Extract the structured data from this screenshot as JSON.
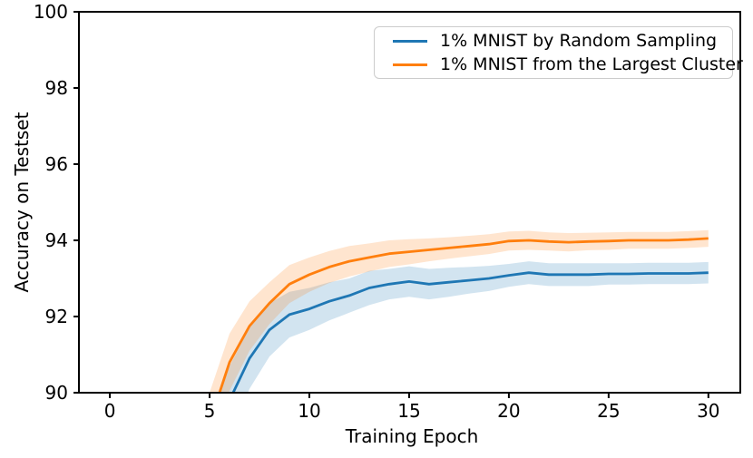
{
  "chart_data": {
    "type": "line",
    "title": "",
    "xlabel": "Training Epoch",
    "ylabel": "Accuracy on Testset",
    "xlim": [
      -1.55,
      31.6
    ],
    "ylim": [
      90,
      100
    ],
    "x_ticks": [
      0,
      5,
      10,
      15,
      20,
      25,
      30
    ],
    "y_ticks": [
      90,
      92,
      94,
      96,
      98,
      100
    ],
    "grid": false,
    "legend_position": "upper right",
    "x": [
      5,
      6,
      7,
      8,
      9,
      10,
      11,
      12,
      13,
      14,
      15,
      16,
      17,
      18,
      19,
      20,
      21,
      22,
      23,
      24,
      25,
      26,
      27,
      28,
      29,
      30
    ],
    "series": [
      {
        "name": "1% MNIST by Random Sampling",
        "slug": "random-sampling",
        "color": "#1f77b4",
        "band_alpha": 0.2,
        "values": [
          88.6,
          89.8,
          90.9,
          91.65,
          92.05,
          92.2,
          92.4,
          92.55,
          92.75,
          92.85,
          92.92,
          92.85,
          92.9,
          92.95,
          93.0,
          93.08,
          93.15,
          93.1,
          93.1,
          93.1,
          93.12,
          93.12,
          93.13,
          93.13,
          93.13,
          93.15
        ],
        "band_halfwidth": [
          0.9,
          0.9,
          0.8,
          0.7,
          0.6,
          0.55,
          0.5,
          0.45,
          0.45,
          0.4,
          0.4,
          0.4,
          0.38,
          0.35,
          0.33,
          0.3,
          0.3,
          0.3,
          0.3,
          0.3,
          0.28,
          0.28,
          0.28,
          0.28,
          0.28,
          0.28
        ]
      },
      {
        "name": "1% MNIST from the Largest Cluster",
        "slug": "largest-cluster",
        "color": "#ff7f0e",
        "band_alpha": 0.2,
        "values": [
          89.2,
          90.8,
          91.75,
          92.35,
          92.85,
          93.1,
          93.3,
          93.45,
          93.55,
          93.65,
          93.7,
          93.75,
          93.8,
          93.85,
          93.9,
          93.98,
          94.0,
          93.97,
          93.95,
          93.97,
          93.98,
          94.0,
          94.0,
          94.0,
          94.02,
          94.05
        ],
        "band_halfwidth": [
          0.8,
          0.75,
          0.65,
          0.55,
          0.5,
          0.45,
          0.42,
          0.4,
          0.37,
          0.35,
          0.33,
          0.3,
          0.28,
          0.27,
          0.26,
          0.25,
          0.25,
          0.24,
          0.24,
          0.23,
          0.23,
          0.22,
          0.22,
          0.22,
          0.22,
          0.22
        ]
      }
    ]
  },
  "colors": {
    "axes": "#000000",
    "tick_label": "#000000",
    "legend_border": "#cccccc",
    "background": "#ffffff"
  }
}
